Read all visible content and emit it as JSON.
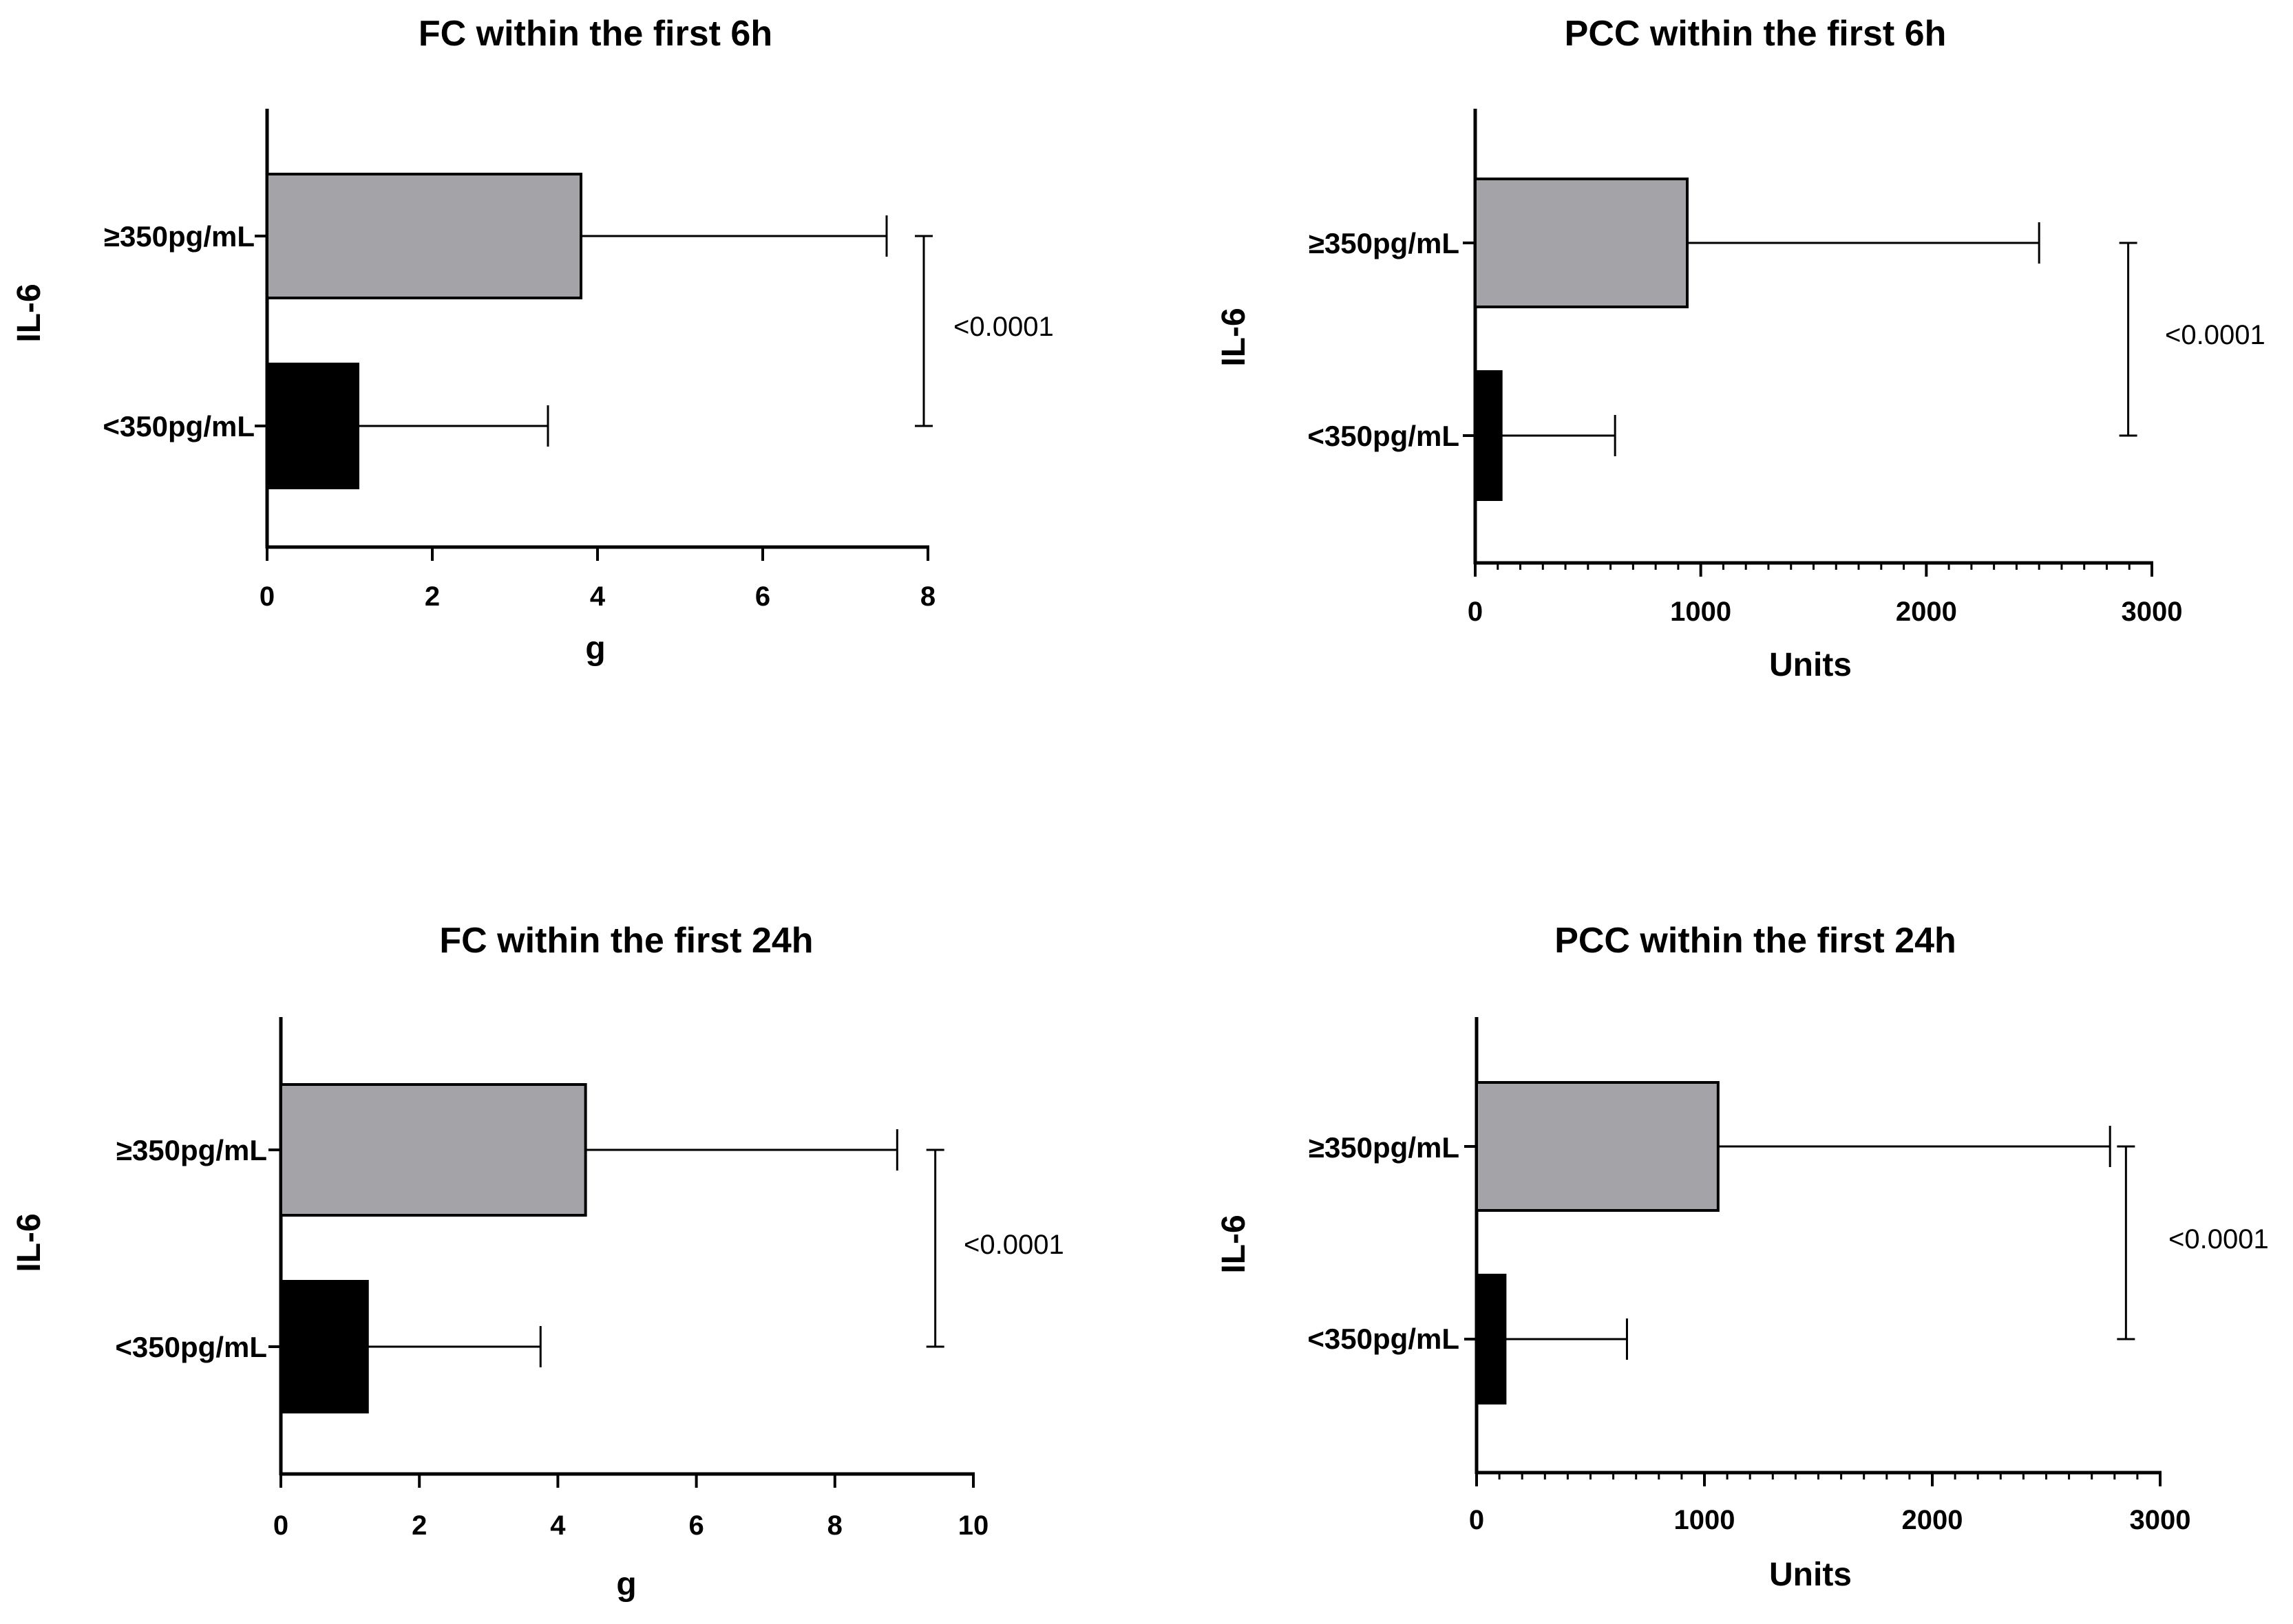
{
  "figure": {
    "bar_colors": {
      "high": "#a3a3a8",
      "low": "#000000"
    },
    "axis_color": "#000000"
  },
  "chart_data": [
    {
      "type": "bar",
      "orientation": "horizontal",
      "title": "FC within the first 6h",
      "xlabel": "g",
      "ylabel": "IL-6",
      "categories": [
        "≥350pg/mL",
        "<350pg/mL"
      ],
      "values": [
        3.8,
        1.1
      ],
      "error_plus": [
        3.7,
        2.3
      ],
      "xlim": [
        0,
        8
      ],
      "xticks": [
        0,
        2,
        4,
        6,
        8
      ],
      "minor_ticks": false,
      "comparison": {
        "label": "<0.0001",
        "between": [
          "≥350pg/mL",
          "<350pg/mL"
        ],
        "at_x": 7.95
      }
    },
    {
      "type": "bar",
      "orientation": "horizontal",
      "title": "PCC within the first 6h",
      "xlabel": "Units",
      "ylabel": "IL-6",
      "categories": [
        "≥350pg/mL",
        "<350pg/mL"
      ],
      "values": [
        940,
        115
      ],
      "error_plus": [
        1560,
        505
      ],
      "xlim": [
        0,
        3000
      ],
      "xticks": [
        0,
        1000,
        2000,
        3000
      ],
      "minor_ticks": true,
      "minor_step": 100,
      "comparison": {
        "label": "<0.0001",
        "between": [
          "≥350pg/mL",
          "<350pg/mL"
        ],
        "at_x": 2895
      }
    },
    {
      "type": "bar",
      "orientation": "horizontal",
      "title": "FC within the first 24h",
      "xlabel": "g",
      "ylabel": "IL-6",
      "categories": [
        "≥350pg/mL",
        "<350pg/mL"
      ],
      "values": [
        4.4,
        1.25
      ],
      "error_plus": [
        4.5,
        2.5
      ],
      "xlim": [
        0,
        10
      ],
      "xticks": [
        0,
        2,
        4,
        6,
        8,
        10
      ],
      "minor_ticks": false,
      "comparison": {
        "label": "<0.0001",
        "between": [
          "≥350pg/mL",
          "<350pg/mL"
        ],
        "at_x": 9.45
      }
    },
    {
      "type": "bar",
      "orientation": "horizontal",
      "title": "PCC within the first 24h",
      "xlabel": "Units",
      "ylabel": "IL-6",
      "categories": [
        "≥350pg/mL",
        "<350pg/mL"
      ],
      "values": [
        1060,
        125
      ],
      "error_plus": [
        1720,
        535
      ],
      "xlim": [
        0,
        3000
      ],
      "xticks": [
        0,
        1000,
        2000,
        3000
      ],
      "minor_ticks": true,
      "minor_step": 100,
      "comparison": {
        "label": "<0.0001",
        "between": [
          "≥350pg/mL",
          "<350pg/mL"
        ],
        "at_x": 2850
      }
    }
  ]
}
